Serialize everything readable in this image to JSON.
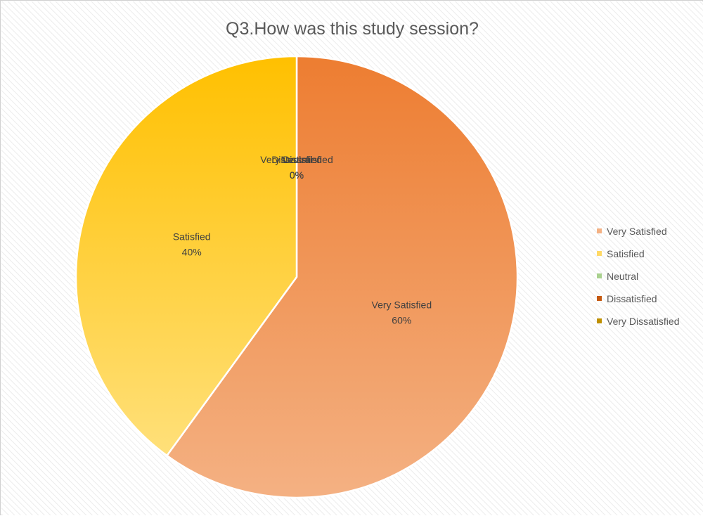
{
  "chart_data": {
    "type": "pie",
    "title": "Q3.How was this study session?",
    "categories": [
      "Very Satisfied",
      "Satisfied",
      "Neutral",
      "Dissatisfied",
      "Very Dissatisfied"
    ],
    "values": [
      60,
      40,
      0,
      0,
      0
    ],
    "unit": "%",
    "legend_position": "right",
    "slice_colors": [
      {
        "top": "#ed7d31",
        "bottom": "#f4b183"
      },
      {
        "top": "#ffc000",
        "bottom": "#ffe07a"
      },
      {
        "top": "#70ad47",
        "bottom": "#a9d18e"
      },
      {
        "top": "#c55a11",
        "bottom": "#e2996b"
      },
      {
        "top": "#bf9000",
        "bottom": "#ffd966"
      }
    ],
    "legend_colors": [
      "#f4b183",
      "#ffd966",
      "#a9d18e",
      "#c55a11",
      "#bf9000"
    ]
  }
}
